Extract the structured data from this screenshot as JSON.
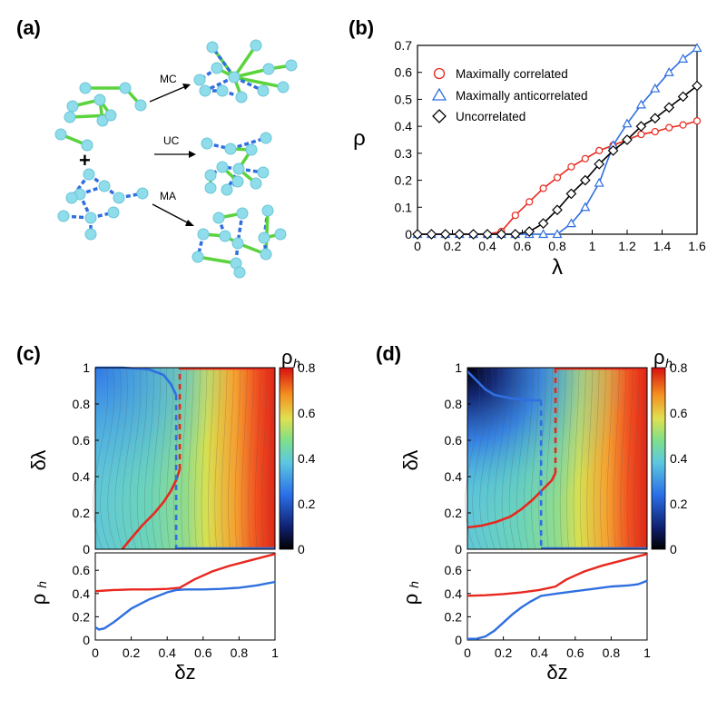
{
  "panels": {
    "a": {
      "label": "(a)",
      "arrows": [
        "MC",
        "UC",
        "MA"
      ],
      "plus": "+"
    },
    "b": {
      "label": "(b)"
    },
    "c": {
      "label": "(c)"
    },
    "d": {
      "label": "(d)"
    }
  },
  "colors": {
    "correlated": "#e8281e",
    "anticorrelated": "#2f6fe0",
    "uncorrelated": "#000000",
    "node": "#8fdcea",
    "edge_green": "#5bd33c",
    "edge_blue": "#2f6fe0"
  },
  "chart_data": [
    {
      "id": "b",
      "type": "line",
      "xlabel": "λ",
      "ylabel": "ρ",
      "xlim": [
        0,
        1.6
      ],
      "ylim": [
        0,
        0.7
      ],
      "xticks": [
        "0",
        "0.2",
        "0.4",
        "0.6",
        "0.8",
        "1",
        "1.2",
        "1.4",
        "1.6"
      ],
      "yticks": [
        "0",
        "0.1",
        "0.2",
        "0.3",
        "0.4",
        "0.5",
        "0.6",
        "0.7"
      ],
      "legend": [
        "Maximally correlated",
        "Maximally anticorrelated",
        "Uncorrelated"
      ],
      "series": [
        {
          "name": "Maximally correlated",
          "marker": "circle",
          "x": [
            0,
            0.08,
            0.16,
            0.24,
            0.32,
            0.4,
            0.48,
            0.56,
            0.64,
            0.72,
            0.8,
            0.88,
            0.96,
            1.04,
            1.12,
            1.2,
            1.28,
            1.36,
            1.44,
            1.52,
            1.6
          ],
          "y": [
            0,
            0,
            0,
            0,
            0,
            0,
            0.01,
            0.07,
            0.12,
            0.17,
            0.21,
            0.25,
            0.28,
            0.31,
            0.33,
            0.35,
            0.37,
            0.38,
            0.395,
            0.405,
            0.42
          ]
        },
        {
          "name": "Maximally anticorrelated",
          "marker": "triangle",
          "x": [
            0,
            0.08,
            0.16,
            0.24,
            0.32,
            0.4,
            0.48,
            0.56,
            0.64,
            0.72,
            0.8,
            0.88,
            0.96,
            1.04,
            1.12,
            1.2,
            1.28,
            1.36,
            1.44,
            1.52,
            1.6
          ],
          "y": [
            0,
            0,
            0,
            0,
            0,
            0,
            0,
            0,
            0,
            0,
            0,
            0.04,
            0.1,
            0.19,
            0.33,
            0.41,
            0.48,
            0.54,
            0.6,
            0.65,
            0.69
          ]
        },
        {
          "name": "Uncorrelated",
          "marker": "diamond",
          "x": [
            0,
            0.08,
            0.16,
            0.24,
            0.32,
            0.4,
            0.48,
            0.56,
            0.64,
            0.72,
            0.8,
            0.88,
            0.96,
            1.04,
            1.12,
            1.2,
            1.28,
            1.36,
            1.44,
            1.52,
            1.6
          ],
          "y": [
            0,
            0,
            0,
            0,
            0,
            0,
            0,
            0,
            0.01,
            0.04,
            0.09,
            0.15,
            0.2,
            0.26,
            0.31,
            0.35,
            0.4,
            0.43,
            0.47,
            0.51,
            0.55
          ]
        }
      ]
    },
    {
      "id": "c-top",
      "type": "heatmap",
      "xlabel": "",
      "ylabel": "δλ",
      "xlim": [
        0,
        1
      ],
      "ylim": [
        0,
        1
      ],
      "yticks": [
        "0",
        "0.2",
        "0.4",
        "0.6",
        "0.8",
        "1"
      ],
      "colorbar": {
        "label": "ρ",
        "label_sub": "h",
        "range": [
          0,
          0.8
        ],
        "ticks": [
          "0",
          "0.2",
          "0.4",
          "0.6",
          "0.8"
        ]
      },
      "boundaries": {
        "red_solid": {
          "x": [
            0.15,
            0.2,
            0.26,
            0.33,
            0.38,
            0.42,
            0.45,
            0.47
          ],
          "y": [
            0,
            0.06,
            0.13,
            0.2,
            0.26,
            0.32,
            0.38,
            0.44
          ]
        },
        "red_dashed_x": 0.47,
        "blue_solid": {
          "x": [
            0,
            0.15,
            0.3,
            0.38,
            0.42,
            0.45
          ],
          "y": [
            1,
            1,
            0.99,
            0.96,
            0.91,
            0.85
          ]
        },
        "blue_dashed_x": 0.45
      }
    },
    {
      "id": "c-bottom",
      "type": "line",
      "xlabel": "δz",
      "ylabel": "ρ",
      "ylabel_sub": "h",
      "xlim": [
        0,
        1
      ],
      "ylim": [
        0,
        0.75
      ],
      "xticks": [
        "0",
        "0.2",
        "0.4",
        "0.6",
        "0.8",
        "1"
      ],
      "yticks": [
        "0",
        "0.2",
        "0.4",
        "0.6"
      ],
      "series": [
        {
          "name": "red",
          "x": [
            0,
            0.1,
            0.2,
            0.3,
            0.4,
            0.47,
            0.55,
            0.65,
            0.75,
            0.85,
            0.95,
            1
          ],
          "y": [
            0.42,
            0.43,
            0.435,
            0.435,
            0.44,
            0.45,
            0.52,
            0.59,
            0.64,
            0.68,
            0.72,
            0.74
          ]
        },
        {
          "name": "blue",
          "x": [
            0,
            0.02,
            0.05,
            0.1,
            0.15,
            0.2,
            0.25,
            0.3,
            0.35,
            0.4,
            0.45,
            0.5,
            0.6,
            0.7,
            0.8,
            0.9,
            1
          ],
          "y": [
            0.11,
            0.09,
            0.1,
            0.15,
            0.21,
            0.27,
            0.31,
            0.35,
            0.38,
            0.41,
            0.43,
            0.435,
            0.435,
            0.44,
            0.45,
            0.47,
            0.5
          ]
        }
      ]
    },
    {
      "id": "d-top",
      "type": "heatmap",
      "xlabel": "",
      "ylabel": "δλ",
      "xlim": [
        0,
        1
      ],
      "ylim": [
        0,
        1
      ],
      "yticks": [
        "0",
        "0.2",
        "0.4",
        "0.6",
        "0.8",
        "1"
      ],
      "colorbar": {
        "label": "ρ",
        "label_sub": "h",
        "range": [
          0,
          0.8
        ],
        "ticks": [
          "0",
          "0.2",
          "0.4",
          "0.6",
          "0.8"
        ]
      },
      "boundaries": {
        "red_solid": {
          "x": [
            0,
            0.08,
            0.16,
            0.24,
            0.3,
            0.36,
            0.42,
            0.47,
            0.49
          ],
          "y": [
            0.12,
            0.13,
            0.15,
            0.18,
            0.22,
            0.27,
            0.33,
            0.38,
            0.42
          ]
        },
        "red_dashed_x": 0.49,
        "blue_solid": {
          "x": [
            0,
            0.05,
            0.1,
            0.15,
            0.25,
            0.35,
            0.41
          ],
          "y": [
            0.98,
            0.93,
            0.88,
            0.85,
            0.83,
            0.82,
            0.82
          ]
        },
        "blue_dashed_x": 0.41
      }
    },
    {
      "id": "d-bottom",
      "type": "line",
      "xlabel": "δz",
      "ylabel": "ρ",
      "ylabel_sub": "h",
      "xlim": [
        0,
        1
      ],
      "ylim": [
        0,
        0.75
      ],
      "xticks": [
        "0",
        "0.2",
        "0.4",
        "0.6",
        "0.8",
        "1"
      ],
      "yticks": [
        "0",
        "0.2",
        "0.4",
        "0.6"
      ],
      "series": [
        {
          "name": "red",
          "x": [
            0,
            0.1,
            0.2,
            0.3,
            0.4,
            0.49,
            0.55,
            0.65,
            0.75,
            0.85,
            0.95,
            1
          ],
          "y": [
            0.38,
            0.385,
            0.395,
            0.41,
            0.43,
            0.46,
            0.52,
            0.59,
            0.64,
            0.68,
            0.72,
            0.74
          ]
        },
        {
          "name": "blue",
          "x": [
            0,
            0.05,
            0.1,
            0.15,
            0.2,
            0.25,
            0.3,
            0.35,
            0.41,
            0.5,
            0.6,
            0.7,
            0.8,
            0.9,
            0.95,
            1
          ],
          "y": [
            0.01,
            0.01,
            0.03,
            0.08,
            0.15,
            0.22,
            0.28,
            0.33,
            0.38,
            0.4,
            0.42,
            0.44,
            0.46,
            0.47,
            0.48,
            0.51
          ]
        }
      ]
    }
  ]
}
